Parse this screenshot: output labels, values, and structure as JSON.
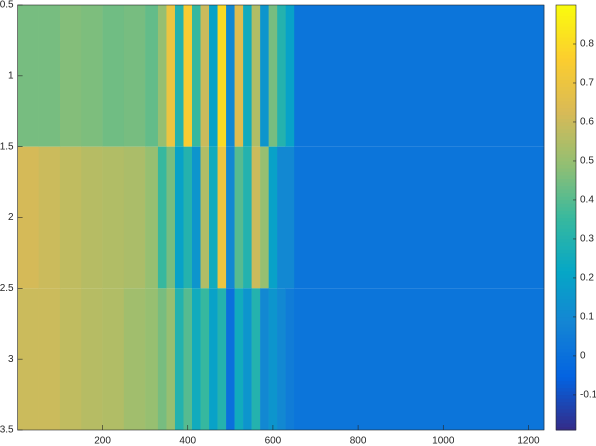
{
  "chart_data": {
    "type": "heatmap",
    "colormap": "parula",
    "x_edges": [
      0.5,
      50,
      100,
      150,
      200,
      250,
      300,
      330,
      350,
      370,
      390,
      410,
      430,
      450,
      470,
      490,
      510,
      530,
      550,
      570,
      590,
      610,
      630,
      650,
      1236.5
    ],
    "rows": [
      1,
      2,
      3
    ],
    "values": [
      [
        0.45,
        0.45,
        0.47,
        0.46,
        0.44,
        0.45,
        0.42,
        0.5,
        0.7,
        0.3,
        0.75,
        0.35,
        0.6,
        0.2,
        0.8,
        0.1,
        0.65,
        0.25,
        0.55,
        0.15,
        0.45,
        0.3,
        0.2,
        0.02
      ],
      [
        0.62,
        0.6,
        0.58,
        0.56,
        0.55,
        0.54,
        0.5,
        0.35,
        0.45,
        0.2,
        0.3,
        0.15,
        0.55,
        0.25,
        0.7,
        0.1,
        0.4,
        0.3,
        0.6,
        0.5,
        0.2,
        0.1,
        0.1,
        0.02
      ],
      [
        0.6,
        0.6,
        0.58,
        0.56,
        0.55,
        0.52,
        0.5,
        0.45,
        0.5,
        0.3,
        0.4,
        0.25,
        0.35,
        0.2,
        0.3,
        0.0,
        0.25,
        0.15,
        0.3,
        0.1,
        0.15,
        0.1,
        0.05,
        0.02
      ]
    ],
    "xlim": [
      0.5,
      1236.5
    ],
    "xticks": [
      200,
      400,
      600,
      800,
      1000,
      1200
    ],
    "ylim": [
      0.5,
      3.5
    ],
    "yticks": [
      0.5,
      1,
      1.5,
      2,
      2.5,
      3,
      3.5
    ],
    "y_reversed": true,
    "clim": [
      -0.19,
      0.9
    ],
    "cticks": [
      -0.1,
      0,
      0.1,
      0.2,
      0.3,
      0.4,
      0.5,
      0.6,
      0.7,
      0.8
    ]
  }
}
